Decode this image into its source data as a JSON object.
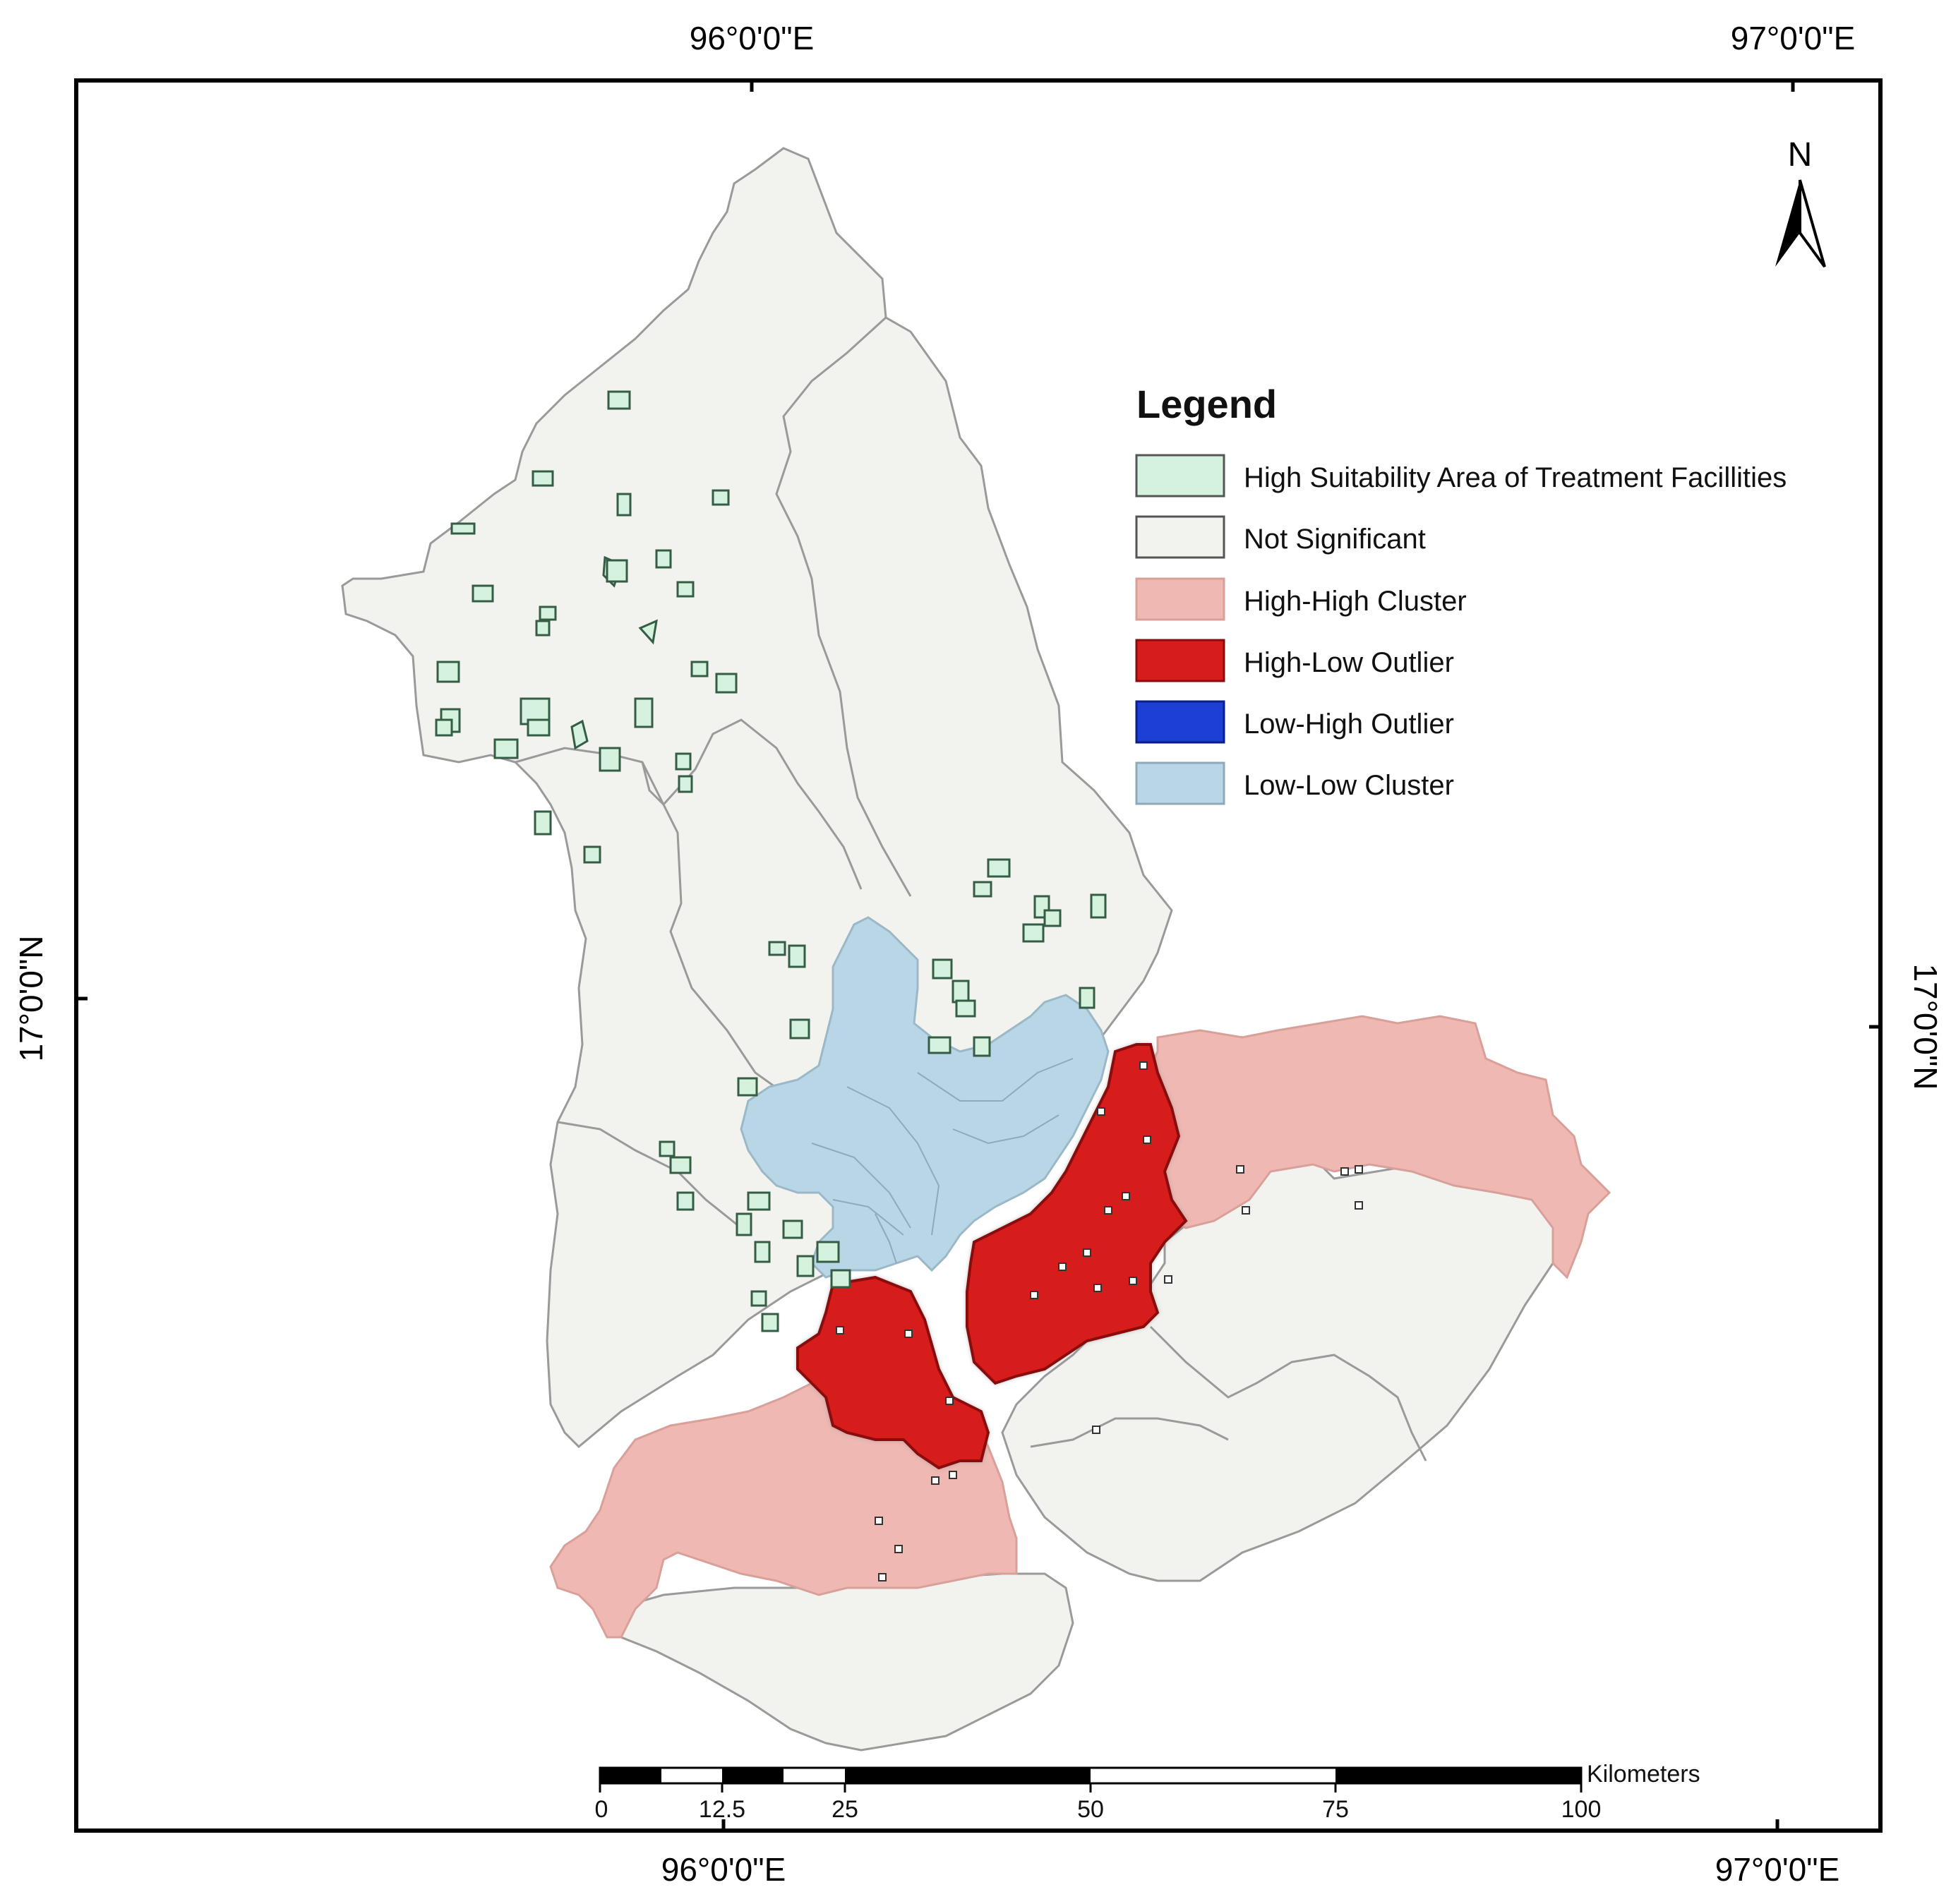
{
  "coordinates": {
    "top_left": "96°0'0\"E",
    "top_right": "97°0'0\"E",
    "bottom_left": "96°0'0\"E",
    "bottom_right": "97°0'0\"E",
    "left": "17°0'0\"N",
    "right": "17°0'0\"N"
  },
  "north_arrow": {
    "label": "N"
  },
  "legend": {
    "title": "Legend",
    "items": [
      {
        "label": "High Suitability Area of Treatment Facillities",
        "color": "#d4f2dd"
      },
      {
        "label": "Not Significant",
        "color": "#f2f2ee"
      },
      {
        "label": "High-High Cluster",
        "color": "#efb8b2"
      },
      {
        "label": "High-Low Outlier",
        "color": "#d71c1c"
      },
      {
        "label": "Low-High Outlier",
        "color": "#1e3fd6"
      },
      {
        "label": "Low-Low Cluster",
        "color": "#b9d6e6"
      }
    ]
  },
  "scale_bar": {
    "unit": "Kilometers",
    "ticks": [
      "0",
      "12.5",
      "25",
      "50",
      "75",
      "100"
    ]
  }
}
